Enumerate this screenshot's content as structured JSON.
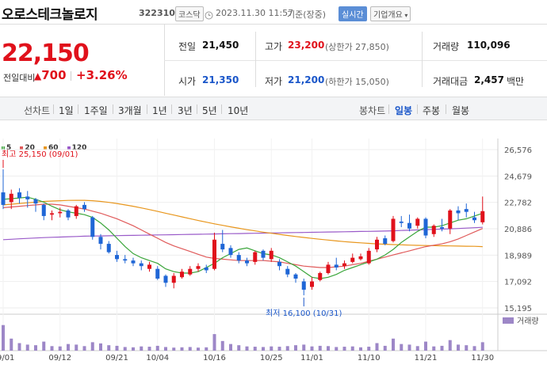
{
  "header": {
    "stock_name": "오로스테크놀로지",
    "stock_code": "322310",
    "market_badge": "코스닥",
    "clock_icon": "clock-icon",
    "timestamp": "2023.11.30 11:57",
    "basis": "기준(장중)",
    "realtime_button": "실시간",
    "company_info_button": "기업개요"
  },
  "price": {
    "current": "22,150",
    "change_label": "전일대비",
    "change_amount": "700",
    "change_percent": "+3.26%"
  },
  "quotes": {
    "prev_close_label": "전일",
    "prev_close": "21,450",
    "high_label": "고가",
    "high": "23,200",
    "upper_limit": "(상한가 27,850)",
    "volume_label": "거래량",
    "volume": "110,096",
    "open_label": "시가",
    "open": "21,350",
    "low_label": "저가",
    "low": "21,200",
    "lower_limit": "(하한가 15,050)",
    "value_label": "거래대금",
    "value": "2,457",
    "value_unit": "백만"
  },
  "toolbar": {
    "line_chart_label": "선차트",
    "periods": [
      "1일",
      "1주일",
      "3개월",
      "1년",
      "3년",
      "5년",
      "10년"
    ],
    "candle_chart_label": "봉차트",
    "candle_periods": [
      "일봉",
      "주봉",
      "월봉"
    ],
    "active_candle": "일봉"
  },
  "colors": {
    "up": "#e0111b",
    "down": "#1f66d6",
    "ma5": "#3aa53a",
    "ma20": "#e05a5a",
    "ma60": "#e8961c",
    "ma120": "#9a5bc9",
    "volume": "#9d87c7"
  },
  "chart_data": {
    "type": "candlestick",
    "moving_average_legend": [
      {
        "name": "5",
        "color": "#3aa53a"
      },
      {
        "name": "20",
        "color": "#e05a5a"
      },
      {
        "name": "60",
        "color": "#e8961c"
      },
      {
        "name": "120",
        "color": "#9a5bc9"
      }
    ],
    "y_ticks": [
      "26,576",
      "24,679",
      "22,782",
      "20,886",
      "18,989",
      "17,092",
      "15,195"
    ],
    "y_tick_values": [
      26576,
      24679,
      22782,
      20886,
      18989,
      17092,
      15195
    ],
    "ylim": [
      15195,
      26576
    ],
    "x_ticks": [
      {
        "label": "09/01",
        "index": 0
      },
      {
        "label": "09/12",
        "index": 7
      },
      {
        "label": "09/21",
        "index": 14
      },
      {
        "label": "10/04",
        "index": 19
      },
      {
        "label": "10/16",
        "index": 26
      },
      {
        "label": "10/25",
        "index": 33
      },
      {
        "label": "11/01",
        "index": 38
      },
      {
        "label": "11/10",
        "index": 45
      },
      {
        "label": "11/21",
        "index": 52
      },
      {
        "label": "11/30",
        "index": 59
      }
    ],
    "high_annotation": "최고 25,150 (09/01)",
    "low_annotation": "최저 16,100 (10/31)",
    "volume_label": "거래량",
    "candles": [
      {
        "o": 23500,
        "c": 22600,
        "h": 25150,
        "l": 22300
      },
      {
        "o": 22800,
        "c": 23400,
        "h": 23700,
        "l": 22300
      },
      {
        "o": 23500,
        "c": 23100,
        "h": 23800,
        "l": 22700
      },
      {
        "o": 23200,
        "c": 23000,
        "h": 23600,
        "l": 22400
      },
      {
        "o": 23000,
        "c": 22700,
        "h": 23100,
        "l": 22100
      },
      {
        "o": 22600,
        "c": 21800,
        "h": 22700,
        "l": 21500
      },
      {
        "o": 21900,
        "c": 22000,
        "h": 22200,
        "l": 21500
      },
      {
        "o": 22000,
        "c": 22100,
        "h": 22400,
        "l": 21700
      },
      {
        "o": 22200,
        "c": 21700,
        "h": 22300,
        "l": 21500
      },
      {
        "o": 21800,
        "c": 22500,
        "h": 22600,
        "l": 21600
      },
      {
        "o": 22600,
        "c": 22300,
        "h": 22800,
        "l": 22100
      },
      {
        "o": 21700,
        "c": 20300,
        "h": 21800,
        "l": 20100
      },
      {
        "o": 20300,
        "c": 19800,
        "h": 20500,
        "l": 19400
      },
      {
        "o": 19800,
        "c": 19200,
        "h": 20000,
        "l": 19100
      },
      {
        "o": 19000,
        "c": 18700,
        "h": 19300,
        "l": 18500
      },
      {
        "o": 18700,
        "c": 18600,
        "h": 19000,
        "l": 18400
      },
      {
        "o": 18600,
        "c": 18400,
        "h": 18800,
        "l": 18200
      },
      {
        "o": 18400,
        "c": 18200,
        "h": 18600,
        "l": 17900
      },
      {
        "o": 18000,
        "c": 18300,
        "h": 18500,
        "l": 17800
      },
      {
        "o": 18000,
        "c": 17300,
        "h": 18200,
        "l": 17200
      },
      {
        "o": 17500,
        "c": 17000,
        "h": 17600,
        "l": 16700
      },
      {
        "o": 17000,
        "c": 17500,
        "h": 17700,
        "l": 16600
      },
      {
        "o": 17400,
        "c": 17800,
        "h": 18000,
        "l": 17300
      },
      {
        "o": 17600,
        "c": 18000,
        "h": 18200,
        "l": 17500
      },
      {
        "o": 18000,
        "c": 18200,
        "h": 18400,
        "l": 17800
      },
      {
        "o": 18100,
        "c": 17900,
        "h": 18300,
        "l": 17700
      },
      {
        "o": 18000,
        "c": 20100,
        "h": 20600,
        "l": 17900
      },
      {
        "o": 19800,
        "c": 19400,
        "h": 20800,
        "l": 19200
      },
      {
        "o": 19500,
        "c": 19000,
        "h": 19700,
        "l": 18800
      },
      {
        "o": 19000,
        "c": 18600,
        "h": 19200,
        "l": 18400
      },
      {
        "o": 18600,
        "c": 18400,
        "h": 18800,
        "l": 18200
      },
      {
        "o": 18500,
        "c": 19200,
        "h": 19300,
        "l": 18300
      },
      {
        "o": 19300,
        "c": 18800,
        "h": 19400,
        "l": 18600
      },
      {
        "o": 18700,
        "c": 19300,
        "h": 19500,
        "l": 18500
      },
      {
        "o": 18500,
        "c": 18200,
        "h": 18700,
        "l": 17900
      },
      {
        "o": 18000,
        "c": 17600,
        "h": 18200,
        "l": 17400
      },
      {
        "o": 17600,
        "c": 17300,
        "h": 17700,
        "l": 17000
      },
      {
        "o": 17100,
        "c": 16500,
        "h": 17300,
        "l": 16100
      },
      {
        "o": 16700,
        "c": 17100,
        "h": 17400,
        "l": 16500
      },
      {
        "o": 17200,
        "c": 17700,
        "h": 17800,
        "l": 17100
      },
      {
        "o": 17700,
        "c": 18300,
        "h": 18500,
        "l": 17600
      },
      {
        "o": 18300,
        "c": 18100,
        "h": 18800,
        "l": 17900
      },
      {
        "o": 18200,
        "c": 18400,
        "h": 18600,
        "l": 18000
      },
      {
        "o": 18500,
        "c": 18800,
        "h": 19100,
        "l": 18400
      },
      {
        "o": 18700,
        "c": 18900,
        "h": 19100,
        "l": 18600
      },
      {
        "o": 18400,
        "c": 19300,
        "h": 19500,
        "l": 18300
      },
      {
        "o": 19400,
        "c": 20100,
        "h": 20300,
        "l": 19200
      },
      {
        "o": 20200,
        "c": 19800,
        "h": 20400,
        "l": 19700
      },
      {
        "o": 20000,
        "c": 21600,
        "h": 21800,
        "l": 19900
      },
      {
        "o": 21400,
        "c": 21300,
        "h": 21800,
        "l": 21000
      },
      {
        "o": 21300,
        "c": 20900,
        "h": 21900,
        "l": 20700
      },
      {
        "o": 21100,
        "c": 21600,
        "h": 21700,
        "l": 20900
      },
      {
        "o": 21600,
        "c": 20400,
        "h": 21700,
        "l": 20200
      },
      {
        "o": 20500,
        "c": 21100,
        "h": 21200,
        "l": 20300
      },
      {
        "o": 21000,
        "c": 20900,
        "h": 21600,
        "l": 20700
      },
      {
        "o": 20900,
        "c": 22200,
        "h": 22300,
        "l": 20500
      },
      {
        "o": 22200,
        "c": 22000,
        "h": 22500,
        "l": 21500
      },
      {
        "o": 22300,
        "c": 22100,
        "h": 22700,
        "l": 21700
      },
      {
        "o": 21700,
        "c": 21500,
        "h": 22100,
        "l": 21300
      },
      {
        "o": 21350,
        "c": 22150,
        "h": 23200,
        "l": 21200
      }
    ],
    "volumes": [
      85,
      40,
      25,
      20,
      18,
      30,
      15,
      14,
      22,
      20,
      15,
      28,
      24,
      18,
      16,
      12,
      11,
      14,
      13,
      16,
      12,
      10,
      11,
      12,
      10,
      11,
      55,
      32,
      22,
      18,
      14,
      13,
      12,
      14,
      13,
      15,
      18,
      20,
      14,
      16,
      15,
      12,
      13,
      14,
      11,
      13,
      25,
      16,
      40,
      22,
      20,
      15,
      30,
      14,
      16,
      35,
      20,
      18,
      15,
      28
    ],
    "volume_ylim": [
      0,
      100
    ],
    "ma": {
      "ma5": [
        23000,
        23050,
        23100,
        23150,
        23000,
        22800,
        22500,
        22250,
        22100,
        22000,
        21900,
        21700,
        21300,
        20800,
        20200,
        19600,
        19100,
        18800,
        18600,
        18400,
        18000,
        17800,
        17700,
        17700,
        17800,
        18100,
        18400,
        18800,
        19100,
        19400,
        19500,
        19300,
        19100,
        19000,
        18800,
        18500,
        18200,
        17800,
        17400,
        17300,
        17400,
        17600,
        17900,
        18100,
        18300,
        18500,
        18700,
        19000,
        19400,
        19900,
        20300,
        20700,
        21000,
        21000,
        21100,
        21300,
        21500,
        21600,
        21800,
        22000
      ],
      "ma20": [
        22400,
        22450,
        22500,
        22550,
        22600,
        22650,
        22650,
        22600,
        22500,
        22400,
        22300,
        22150,
        22000,
        21800,
        21600,
        21350,
        21100,
        20800,
        20500,
        20200,
        19900,
        19650,
        19450,
        19250,
        19050,
        18850,
        18750,
        18700,
        18650,
        18600,
        18600,
        18600,
        18600,
        18550,
        18500,
        18400,
        18300,
        18200,
        18150,
        18100,
        18100,
        18150,
        18200,
        18300,
        18400,
        18550,
        18700,
        18850,
        19000,
        19150,
        19300,
        19450,
        19600,
        19700,
        19800,
        19950,
        20150,
        20400,
        20650,
        20900
      ],
      "ma60": [
        22600,
        22650,
        22700,
        22750,
        22800,
        22850,
        22880,
        22900,
        22920,
        22930,
        22930,
        22900,
        22850,
        22780,
        22700,
        22600,
        22500,
        22380,
        22260,
        22130,
        22000,
        21870,
        21740,
        21610,
        21480,
        21360,
        21240,
        21130,
        21020,
        20920,
        20820,
        20730,
        20640,
        20560,
        20480,
        20400,
        20330,
        20260,
        20190,
        20130,
        20070,
        20010,
        19960,
        19910,
        19870,
        19830,
        19800,
        19770,
        19750,
        19730,
        19710,
        19690,
        19680,
        19670,
        19660,
        19650,
        19640,
        19630,
        19620,
        19600
      ],
      "ma120": [
        20100,
        20130,
        20160,
        20190,
        20220,
        20250,
        20270,
        20290,
        20310,
        20330,
        20350,
        20360,
        20370,
        20380,
        20390,
        20400,
        20410,
        20420,
        20430,
        20440,
        20450,
        20460,
        20470,
        20480,
        20490,
        20500,
        20510,
        20520,
        20530,
        20540,
        20550,
        20560,
        20570,
        20580,
        20590,
        20600,
        20610,
        20620,
        20630,
        20640,
        20650,
        20660,
        20670,
        20680,
        20690,
        20700,
        20710,
        20720,
        20740,
        20760,
        20780,
        20800,
        20820,
        20840,
        20860,
        20880,
        20900,
        20930,
        20960,
        20990
      ]
    }
  }
}
